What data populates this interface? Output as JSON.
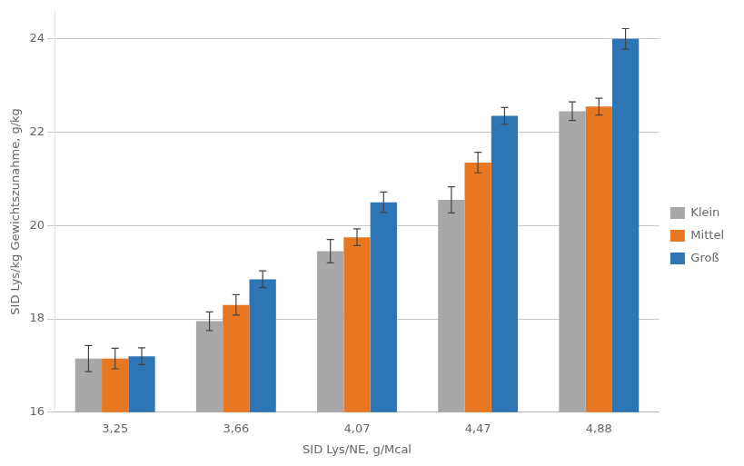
{
  "chart_data": {
    "type": "bar",
    "xlabel": "SID Lys/NE, g/Mcal",
    "ylabel": "SID Lys/kg Gewichtszunahme, g/kg",
    "categories": [
      "3,25",
      "3,66",
      "4,07",
      "4,47",
      "4,88"
    ],
    "series": [
      {
        "name": "Klein",
        "color": "#A8A8A8",
        "values": [
          17.15,
          17.95,
          19.45,
          20.55,
          22.45
        ],
        "errors": [
          0.28,
          0.2,
          0.25,
          0.28,
          0.2
        ]
      },
      {
        "name": "Mittel",
        "color": "#E87722",
        "values": [
          17.15,
          18.3,
          19.75,
          21.35,
          22.55
        ],
        "errors": [
          0.22,
          0.22,
          0.18,
          0.22,
          0.18
        ]
      },
      {
        "name": "Groß",
        "color": "#2E75B6",
        "values": [
          17.2,
          18.85,
          20.5,
          22.35,
          24.0
        ],
        "errors": [
          0.18,
          0.18,
          0.22,
          0.18,
          0.22
        ]
      }
    ],
    "ylim": [
      16,
      24.6
    ],
    "yticks": [
      16,
      18,
      20,
      22,
      24
    ],
    "grid": true,
    "legend": "right"
  }
}
